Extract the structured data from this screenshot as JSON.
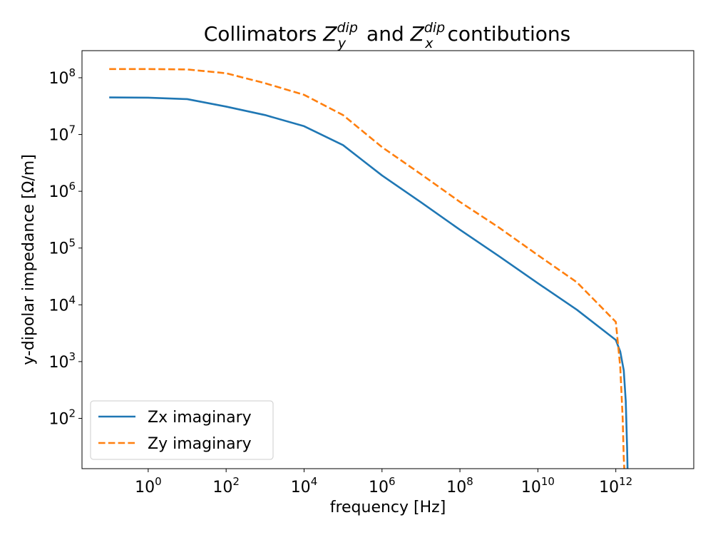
{
  "chart_data": {
    "type": "line",
    "title": {
      "prefix": "Collimators ",
      "z1": "Z",
      "z1_sub": "y",
      "z1_sup": "dip",
      "middle": " and ",
      "z2": "Z",
      "z2_sub": "x",
      "z2_sup": "dip",
      "suffix": "contibutions"
    },
    "xlabel": "frequency [Hz]",
    "ylabel": "y-dipolar impedance [Ω/m]",
    "xscale": "log",
    "yscale": "log",
    "xlim": [
      0.02,
      100000000000000.0
    ],
    "ylim": [
      13,
      300000000.0
    ],
    "x_ticks": [
      {
        "value": 1,
        "base": "10",
        "exp": "0"
      },
      {
        "value": 100,
        "base": "10",
        "exp": "2"
      },
      {
        "value": 10000,
        "base": "10",
        "exp": "4"
      },
      {
        "value": 1000000,
        "base": "10",
        "exp": "6"
      },
      {
        "value": 100000000,
        "base": "10",
        "exp": "8"
      },
      {
        "value": 10000000000,
        "base": "10",
        "exp": "10"
      },
      {
        "value": 1000000000000,
        "base": "10",
        "exp": "12"
      }
    ],
    "y_ticks": [
      {
        "value": 100,
        "base": "10",
        "exp": "2"
      },
      {
        "value": 1000,
        "base": "10",
        "exp": "3"
      },
      {
        "value": 10000,
        "base": "10",
        "exp": "4"
      },
      {
        "value": 100000,
        "base": "10",
        "exp": "5"
      },
      {
        "value": 1000000,
        "base": "10",
        "exp": "6"
      },
      {
        "value": 10000000,
        "base": "10",
        "exp": "7"
      },
      {
        "value": 100000000,
        "base": "10",
        "exp": "8"
      }
    ],
    "legend_position": "lower-left",
    "grid": false,
    "series": [
      {
        "name": "Zx imaginary",
        "color": "#1f77b4",
        "style": "solid",
        "x": [
          0.1,
          1,
          10,
          100,
          1000,
          10000,
          100000,
          1000000,
          10000000,
          100000000,
          1000000000,
          10000000000,
          100000000000,
          1000000000000,
          1300000000000,
          1600000000000,
          1800000000000,
          1950000000000,
          2000000000000
        ],
        "y": [
          45000000,
          44500000,
          42000000,
          31000000,
          22000000,
          14000000,
          6500000,
          1900000,
          640000,
          210000,
          72000,
          24000,
          8200,
          2400,
          1500,
          700,
          200,
          30,
          13
        ]
      },
      {
        "name": "Zy imaginary",
        "color": "#ff7f0e",
        "style": "dashed",
        "x": [
          0.1,
          1,
          10,
          100,
          1000,
          10000,
          100000,
          1000000,
          10000000,
          100000000,
          1000000000,
          10000000000,
          100000000000,
          1000000000000,
          1300000000000,
          1500000000000,
          1600000000000,
          1650000000000
        ],
        "y": [
          142000000,
          142000000,
          140000000,
          120000000,
          80000000,
          50000000,
          22000000,
          6000000,
          2000000,
          650000,
          230000,
          75000,
          25000,
          5000,
          800,
          100,
          20,
          13
        ]
      }
    ]
  }
}
